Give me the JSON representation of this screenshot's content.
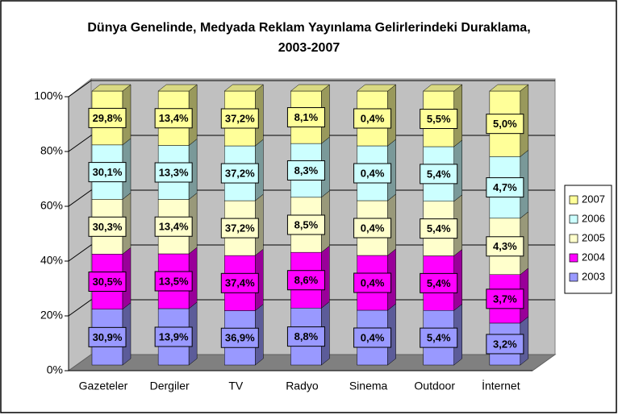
{
  "chart_data": {
    "type": "bar3d",
    "stacking": "percent",
    "title": "Dünya Genelinde, Medyada Reklam Yayınlama Gelirlerindeki Duraklama, 2003-2007",
    "categories": [
      "Gazeteler",
      "Dergiler",
      "TV",
      "Radyo",
      "Sinema",
      "Outdoor",
      "İnternet"
    ],
    "series": [
      {
        "name": "2003",
        "color": "#9999ff",
        "values": [
          30.9,
          13.9,
          36.9,
          8.8,
          0.4,
          5.4,
          3.2
        ],
        "value_labels": [
          "30,9%",
          "13,9%",
          "36,9%",
          "8,8%",
          "0,4%",
          "5,4%",
          "3,2%"
        ]
      },
      {
        "name": "2004",
        "color": "#ff00ff",
        "values": [
          30.5,
          13.5,
          37.4,
          8.6,
          0.4,
          5.4,
          3.7
        ],
        "value_labels": [
          "30,5%",
          "13,5%",
          "37,4%",
          "8,6%",
          "0,4%",
          "5,4%",
          "3,7%"
        ]
      },
      {
        "name": "2005",
        "color": "#ffffcc",
        "values": [
          30.3,
          13.4,
          37.2,
          8.5,
          0.4,
          5.4,
          4.3
        ],
        "value_labels": [
          "30,3%",
          "13,4%",
          "37,2%",
          "8,5%",
          "0,4%",
          "5,4%",
          "4,3%"
        ]
      },
      {
        "name": "2006",
        "color": "#ccffff",
        "values": [
          30.1,
          13.3,
          37.2,
          8.3,
          0.4,
          5.4,
          4.7
        ],
        "value_labels": [
          "30,1%",
          "13,3%",
          "37,2%",
          "8,3%",
          "0,4%",
          "5,4%",
          "4,7%"
        ]
      },
      {
        "name": "2007",
        "color": "#ffff99",
        "values": [
          29.8,
          13.4,
          37.2,
          8.1,
          0.4,
          5.5,
          5.0
        ],
        "value_labels": [
          "29,8%",
          "13,4%",
          "37,2%",
          "8,1%",
          "0,4%",
          "5,5%",
          "5,0%"
        ]
      }
    ],
    "ylim": [
      0,
      100
    ],
    "yticks": [
      {
        "value": 0,
        "label": "0%"
      },
      {
        "value": 20,
        "label": "20%"
      },
      {
        "value": 40,
        "label": "40%"
      },
      {
        "value": 60,
        "label": "60%"
      },
      {
        "value": 80,
        "label": "80%"
      },
      {
        "value": 100,
        "label": "100%"
      }
    ],
    "grid": true,
    "legend": "right"
  }
}
